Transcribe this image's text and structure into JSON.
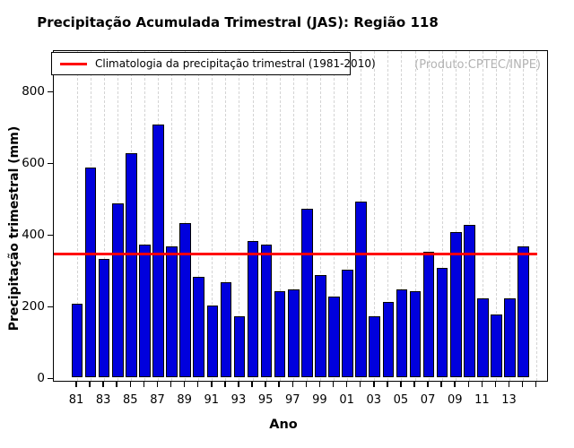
{
  "chart_data": {
    "type": "bar",
    "title": "Precipitação Acumulada Trimestral (JAS): Região 118",
    "xlabel": "Ano",
    "ylabel": "Precipitação trimestral (mm)",
    "legend_label": "Climatologia da precipitação trimestral (1981-2010)",
    "watermark": "(Produto:CPTEC/INPE)",
    "categories": [
      "81",
      "82",
      "83",
      "84",
      "85",
      "86",
      "87",
      "88",
      "89",
      "90",
      "91",
      "92",
      "93",
      "94",
      "95",
      "96",
      "97",
      "98",
      "99",
      "00",
      "01",
      "02",
      "03",
      "04",
      "05",
      "06",
      "07",
      "08",
      "09",
      "10",
      "11",
      "12",
      "13",
      "14"
    ],
    "values": [
      205,
      585,
      330,
      485,
      625,
      370,
      705,
      365,
      430,
      280,
      200,
      265,
      170,
      380,
      370,
      240,
      245,
      470,
      285,
      225,
      300,
      490,
      170,
      210,
      245,
      240,
      350,
      305,
      405,
      425,
      220,
      175,
      220,
      365
    ],
    "x_tick_labels": [
      "81",
      "83",
      "85",
      "87",
      "89",
      "91",
      "93",
      "95",
      "97",
      "99",
      "01",
      "03",
      "05",
      "07",
      "09",
      "11",
      "13"
    ],
    "label_every": 2,
    "y_ticks": [
      0,
      200,
      400,
      600,
      800
    ],
    "ylim": [
      0,
      916
    ],
    "climatology": 345,
    "grid": "vertical-dashed",
    "legend_position": "top-left",
    "colors": {
      "bar": "#0000dd",
      "bar_border": "#000000",
      "climatology_line": "#ff0000",
      "grid": "#d4d4d4",
      "watermark": "#b3b3b3"
    }
  }
}
